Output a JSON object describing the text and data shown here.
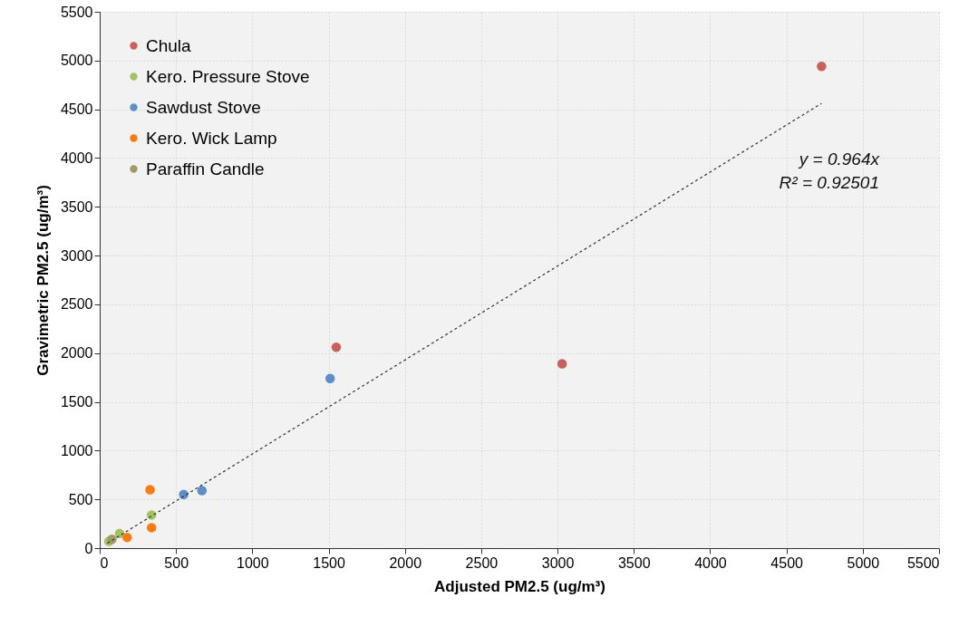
{
  "chart_data": {
    "type": "scatter",
    "xlabel": "Adjusted PM2.5 (ug/m³)",
    "ylabel": "Gravimetric PM2.5 (ug/m³)",
    "series": [
      {
        "name": "Chula",
        "color": "#c9605a",
        "x": [
          4730,
          1550,
          3030
        ],
        "values": [
          4940,
          2060,
          1890
        ]
      },
      {
        "name": "Kero. Pressure Stove",
        "color": "#a3c35f",
        "x": [
          340,
          130,
          60
        ],
        "values": [
          340,
          150,
          70
        ]
      },
      {
        "name": "Sawdust Stove",
        "color": "#5b8fc9",
        "x": [
          550,
          670,
          1510
        ],
        "values": [
          550,
          590,
          1740
        ]
      },
      {
        "name": "Kero. Wick Lamp",
        "color": "#f97a0f",
        "x": [
          330,
          340,
          180
        ],
        "values": [
          600,
          210,
          110
        ]
      },
      {
        "name": "Paraffin Candle",
        "color": "#a09a68",
        "x": [
          80
        ],
        "values": [
          90
        ]
      },
      {
        "type": "line",
        "color": "#333333",
        "line_style": "dashed",
        "marker": "none",
        "x": [
          50,
          4730
        ],
        "values": [
          50,
          4560
        ]
      }
    ],
    "annotations": [
      "y = 0.964x",
      "R² = 0.92501"
    ],
    "xlim": [
      0,
      5500
    ],
    "xticks": [
      0,
      500,
      1000,
      1500,
      2000,
      2500,
      3000,
      3500,
      4000,
      4500,
      5000,
      5500
    ],
    "ylim": [
      0,
      5500
    ],
    "yticks": [
      0,
      500,
      1000,
      1500,
      2000,
      2500,
      3000,
      3500,
      4000,
      4500,
      5000,
      5500
    ],
    "grid": true,
    "legend": "top left",
    "marker": "circle"
  }
}
